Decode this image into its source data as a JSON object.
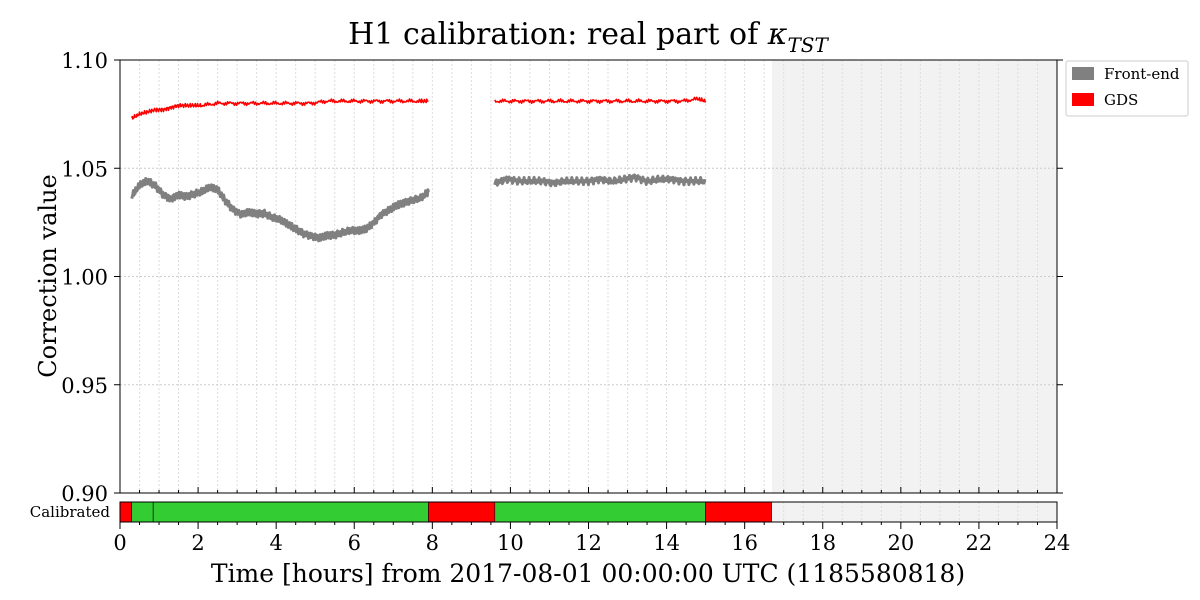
{
  "chart_data": {
    "type": "line",
    "title_main": "H1 calibration: real part of ",
    "title_symbol": "κ",
    "title_subscript": "TST",
    "xlabel": "Time [hours] from 2017-08-01 00:00:00 UTC (1185580818)",
    "ylabel": "Correction value",
    "xlim": [
      0,
      24
    ],
    "ylim": [
      0.9,
      1.1
    ],
    "x_ticks": [
      0,
      2,
      4,
      6,
      8,
      10,
      12,
      14,
      16,
      18,
      20,
      22,
      24
    ],
    "x_tick_labels": [
      "0",
      "2",
      "4",
      "6",
      "8",
      "10",
      "12",
      "14",
      "16",
      "18",
      "20",
      "22",
      "24"
    ],
    "y_ticks": [
      0.9,
      0.95,
      1.0,
      1.05,
      1.1
    ],
    "y_tick_labels": [
      "0.90",
      "0.95",
      "1.00",
      "1.05",
      "1.10"
    ],
    "grid": true,
    "legend_position": "outside-top-right",
    "shaded_region": {
      "x_start": 16.7,
      "x_end": 24,
      "color": "#f2f2f2"
    },
    "series": [
      {
        "name": "Front-end",
        "color": "#808080",
        "segments": [
          {
            "x": [
              0.3,
              0.5,
              0.7,
              0.9,
              1.1,
              1.3,
              1.5,
              1.7,
              1.9,
              2.1,
              2.3,
              2.5,
              2.7,
              2.9,
              3.1,
              3.3,
              3.5,
              3.7,
              3.9,
              4.1,
              4.3,
              4.5,
              4.7,
              4.9,
              5.1,
              5.3,
              5.5,
              5.7,
              5.9,
              6.1,
              6.3,
              6.5,
              6.7,
              6.9,
              7.1,
              7.3,
              7.5,
              7.7,
              7.9
            ],
            "y": [
              1.037,
              1.042,
              1.044,
              1.042,
              1.038,
              1.036,
              1.038,
              1.037,
              1.038,
              1.039,
              1.041,
              1.04,
              1.035,
              1.031,
              1.029,
              1.03,
              1.029,
              1.029,
              1.027,
              1.026,
              1.024,
              1.022,
              1.02,
              1.019,
              1.018,
              1.019,
              1.019,
              1.02,
              1.021,
              1.021,
              1.022,
              1.025,
              1.029,
              1.031,
              1.033,
              1.034,
              1.035,
              1.036,
              1.039
            ]
          },
          {
            "x": [
              9.6,
              9.9,
              10.2,
              10.5,
              10.8,
              11.1,
              11.4,
              11.7,
              12.0,
              12.3,
              12.6,
              12.9,
              13.2,
              13.5,
              13.8,
              14.1,
              14.4,
              14.7,
              15.0
            ],
            "y": [
              1.043,
              1.045,
              1.044,
              1.044,
              1.044,
              1.043,
              1.044,
              1.044,
              1.044,
              1.045,
              1.044,
              1.045,
              1.046,
              1.044,
              1.045,
              1.045,
              1.044,
              1.044,
              1.044
            ]
          }
        ]
      },
      {
        "name": "GDS",
        "color": "#ff0000",
        "segments": [
          {
            "x": [
              0.3,
              0.5,
              0.7,
              0.9,
              1.1,
              1.3,
              1.5,
              1.7,
              1.9,
              2.1,
              2.5,
              2.9,
              3.3,
              3.7,
              4.1,
              4.5,
              4.9,
              5.3,
              5.7,
              6.1,
              6.5,
              6.9,
              7.3,
              7.7,
              7.9
            ],
            "y": [
              1.073,
              1.075,
              1.076,
              1.077,
              1.077,
              1.078,
              1.079,
              1.079,
              1.079,
              1.079,
              1.08,
              1.08,
              1.08,
              1.08,
              1.08,
              1.08,
              1.08,
              1.081,
              1.081,
              1.081,
              1.081,
              1.081,
              1.081,
              1.081,
              1.081
            ]
          },
          {
            "x": [
              9.6,
              10.0,
              10.4,
              10.8,
              11.2,
              11.6,
              12.0,
              12.4,
              12.8,
              13.2,
              13.6,
              14.0,
              14.4,
              14.8,
              15.0
            ],
            "y": [
              1.081,
              1.081,
              1.081,
              1.081,
              1.081,
              1.081,
              1.081,
              1.081,
              1.081,
              1.081,
              1.081,
              1.081,
              1.081,
              1.082,
              1.081
            ]
          }
        ]
      }
    ],
    "calibrated_bar": {
      "label": "Calibrated",
      "segments": [
        {
          "start": 0.0,
          "end": 0.3,
          "color": "#ff0000"
        },
        {
          "start": 0.3,
          "end": 0.85,
          "color": "#33cc33"
        },
        {
          "start": 0.85,
          "end": 7.9,
          "color": "#33cc33"
        },
        {
          "start": 7.9,
          "end": 9.6,
          "color": "#ff0000"
        },
        {
          "start": 9.6,
          "end": 15.0,
          "color": "#33cc33"
        },
        {
          "start": 15.0,
          "end": 16.7,
          "color": "#ff0000"
        },
        {
          "start": 16.7,
          "end": 24.0,
          "color": "#f2f2f2"
        }
      ]
    }
  }
}
